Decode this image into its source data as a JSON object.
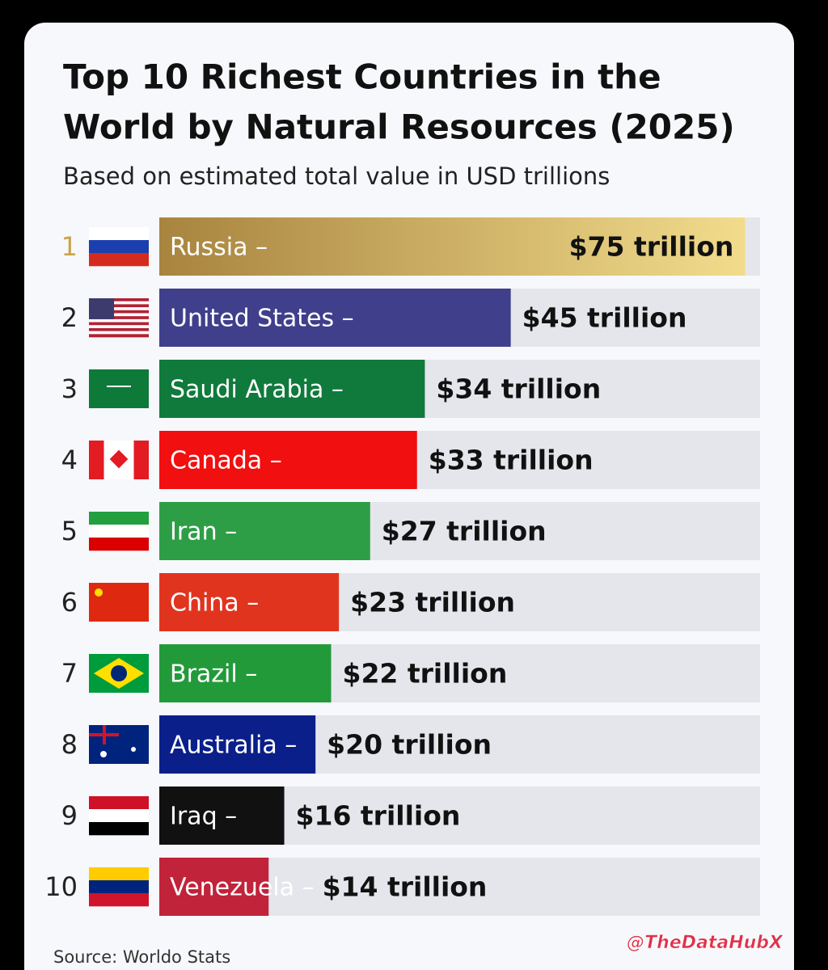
{
  "chart_data": {
    "type": "bar",
    "orientation": "horizontal",
    "title_lines": [
      "Top 10 Richest Countries in the",
      "World by Natural Resources (2025)"
    ],
    "subtitle": "Based on estimated total value in USD trillions",
    "ranks": [
      1,
      2,
      3,
      4,
      5,
      6,
      7,
      8,
      9,
      10
    ],
    "categories": [
      "Russia –",
      "United States –",
      "Saudi Arabia –",
      "Canada –",
      "Iran –",
      "China –",
      "Brazil –",
      "Australia –",
      "Iraq –",
      "Venezuela –"
    ],
    "values": [
      75,
      45,
      34,
      33,
      27,
      23,
      22,
      20,
      16,
      14
    ],
    "value_labels": [
      "$75 trillion",
      "$45 trillion",
      "$34 trillion",
      "$33 trillion",
      "$27 trillion",
      "$23 trillion",
      "$22 trillion",
      "$20 trillion",
      "$16 trillion",
      "$14 trillion"
    ],
    "colors": [
      "#c9a44c",
      "#3f3f8c",
      "#0f7a3c",
      "#f20f0f",
      "#2e9e46",
      "#e1341f",
      "#239a3a",
      "#0b1f8a",
      "#111111",
      "#c1233a"
    ],
    "source": "Source: Worldo Stats",
    "watermark": "@TheDataHubX"
  }
}
